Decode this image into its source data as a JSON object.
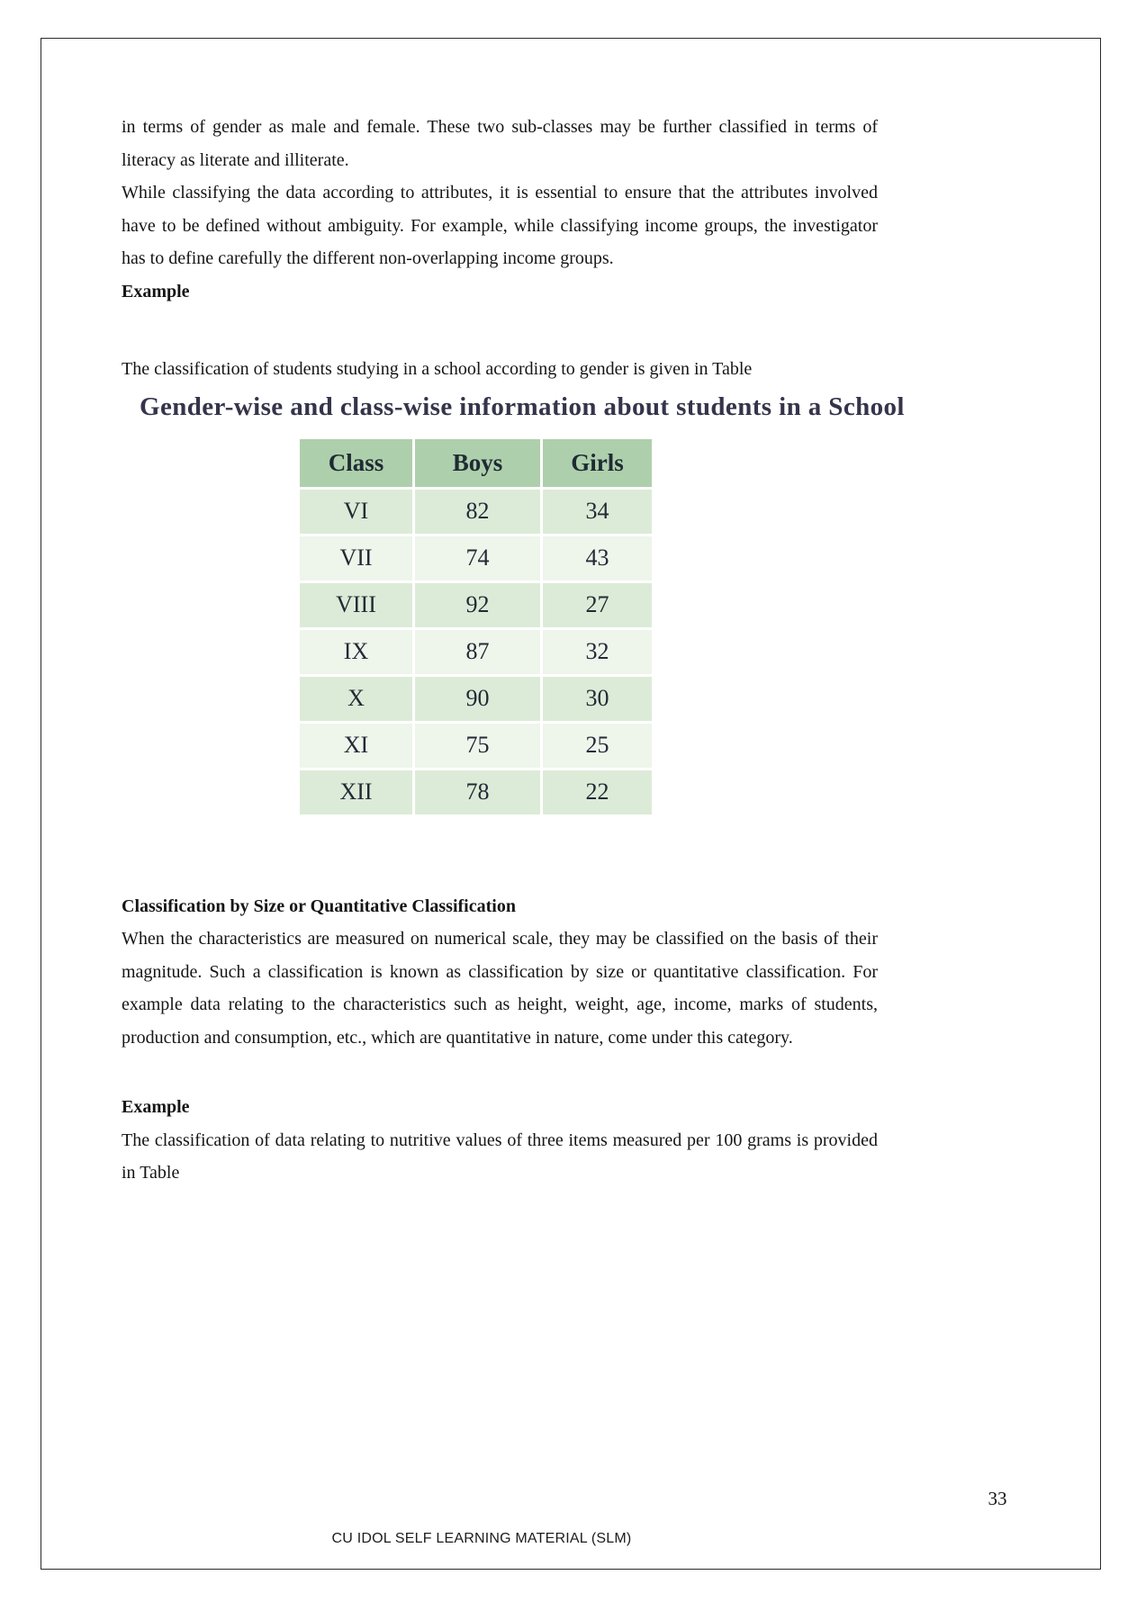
{
  "page": {
    "number": "33",
    "footer": "CU IDOL SELF LEARNING MATERIAL (SLM)"
  },
  "content": {
    "para_gender": "in terms of gender as male and female. These two sub-classes may be further classified in terms of literacy as literate and illiterate.",
    "para_attributes": "While classifying the data according to attributes, it is essential to ensure that the attributes involved have to be defined without ambiguity. For example, while classifying income groups, the investigator has to define carefully the different non-overlapping income groups.",
    "example1_label": "Example",
    "para_table_intro": "The classification of students studying in a school according to gender is given in Table",
    "table_title": "Gender-wise and class-wise information about students in a School",
    "quantitative_heading": "Classification by Size or Quantitative Classification",
    "para_quantitative": "When the characteristics are measured on numerical scale, they may be classified on the basis of their magnitude. Such a classification is known as classification by size or quantitative classification. For example data relating to the characteristics such as height, weight, age, income, marks of students, production and consumption, etc., which are quantitative in nature, come under this category.",
    "example2_label": "Example",
    "para_nutritive": "The classification of data relating to nutritive values of three items measured per 100 grams is provided in Table"
  },
  "table": {
    "headers": [
      "Class",
      "Boys",
      "Girls"
    ],
    "rows": [
      [
        "VI",
        "82",
        "34"
      ],
      [
        "VII",
        "74",
        "43"
      ],
      [
        "VIII",
        "92",
        "27"
      ],
      [
        "IX",
        "87",
        "32"
      ],
      [
        "X",
        "90",
        "30"
      ],
      [
        "XI",
        "75",
        "25"
      ],
      [
        "XII",
        "78",
        "22"
      ]
    ]
  },
  "colors": {
    "table_header_bg": "#aecfac",
    "table_row_dark_bg": "#dcebd7",
    "table_row_light_bg": "#eef5eb",
    "table_title_text": "#35344a",
    "body_text": "#151515"
  }
}
